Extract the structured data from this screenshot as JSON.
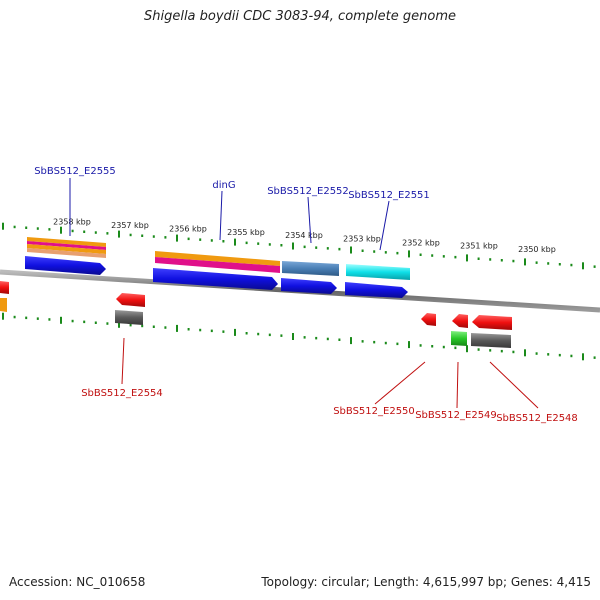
{
  "title": "Shigella boydii CDC 3083-94, complete genome",
  "footer": {
    "accession": "Accession: NC_010658",
    "summary": "Topology: circular; Length: 4,615,997 bp; Genes: 4,415"
  },
  "ticks": [
    "2358 kbp",
    "2357 kbp",
    "2356 kbp",
    "2355 kbp",
    "2354 kbp",
    "2353 kbp",
    "2352 kbp",
    "2351 kbp",
    "2350 kbp"
  ],
  "top_labels": [
    "SbBS512_E2555",
    "dinG",
    "SbBS512_E2552",
    "SbBS512_E2551"
  ],
  "bottom_labels": [
    "SbBS512_E2554",
    "SbBS512_E2550",
    "SbBS512_E2549",
    "SbBS512_E2548"
  ],
  "colors": {
    "blue": "#1010e0",
    "steelblue": "#4a7fb5",
    "cyan": "#10e0e8",
    "orange": "#f09a10",
    "magenta": "#e0108a",
    "red": "#f01010",
    "gray": "#5a5a5a",
    "green": "#28c828",
    "tick": "#1a8a1a",
    "backbone": "#777777"
  }
}
